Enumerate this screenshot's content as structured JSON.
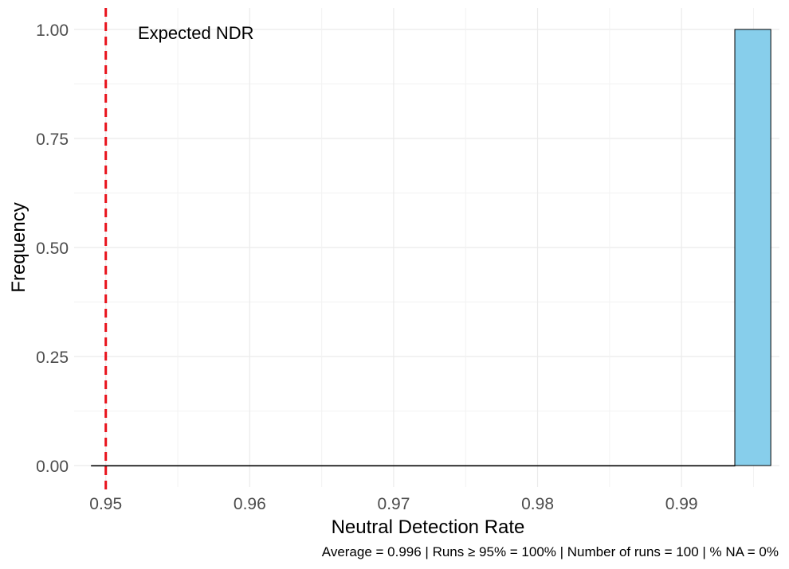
{
  "chart_data": {
    "type": "bar",
    "subtype": "histogram",
    "xlabel": "Neutral Detection Rate",
    "ylabel": "Frequency",
    "xlim": [
      0.9478,
      0.9968
    ],
    "ylim": [
      0,
      1.0
    ],
    "x_ticks": [
      0.95,
      0.96,
      0.97,
      0.98,
      0.99
    ],
    "x_tick_labels": [
      "0.95",
      "0.96",
      "0.97",
      "0.98",
      "0.99"
    ],
    "y_ticks": [
      0,
      0.25,
      0.5,
      0.75,
      1.0
    ],
    "y_tick_labels": [
      "0.00",
      "0.25",
      "0.50",
      "0.75",
      "1.00"
    ],
    "bins": [
      {
        "x0": 0.949,
        "x1": 0.9937,
        "count": 0
      },
      {
        "x0": 0.9937,
        "x1": 0.9962,
        "count": 1.0
      }
    ],
    "reference_line": {
      "x": 0.95,
      "label": "Expected NDR",
      "color": "#e8111a",
      "style": "dashed"
    },
    "caption": "Average = 0.996 | Runs ≥ 95% = 100% | Number of runs = 100 | % NA = 0%",
    "grid": true,
    "colors": {
      "bar_fill": "#87ceeb",
      "bar_edge": "#000000",
      "grid": "#ebebeb"
    }
  }
}
